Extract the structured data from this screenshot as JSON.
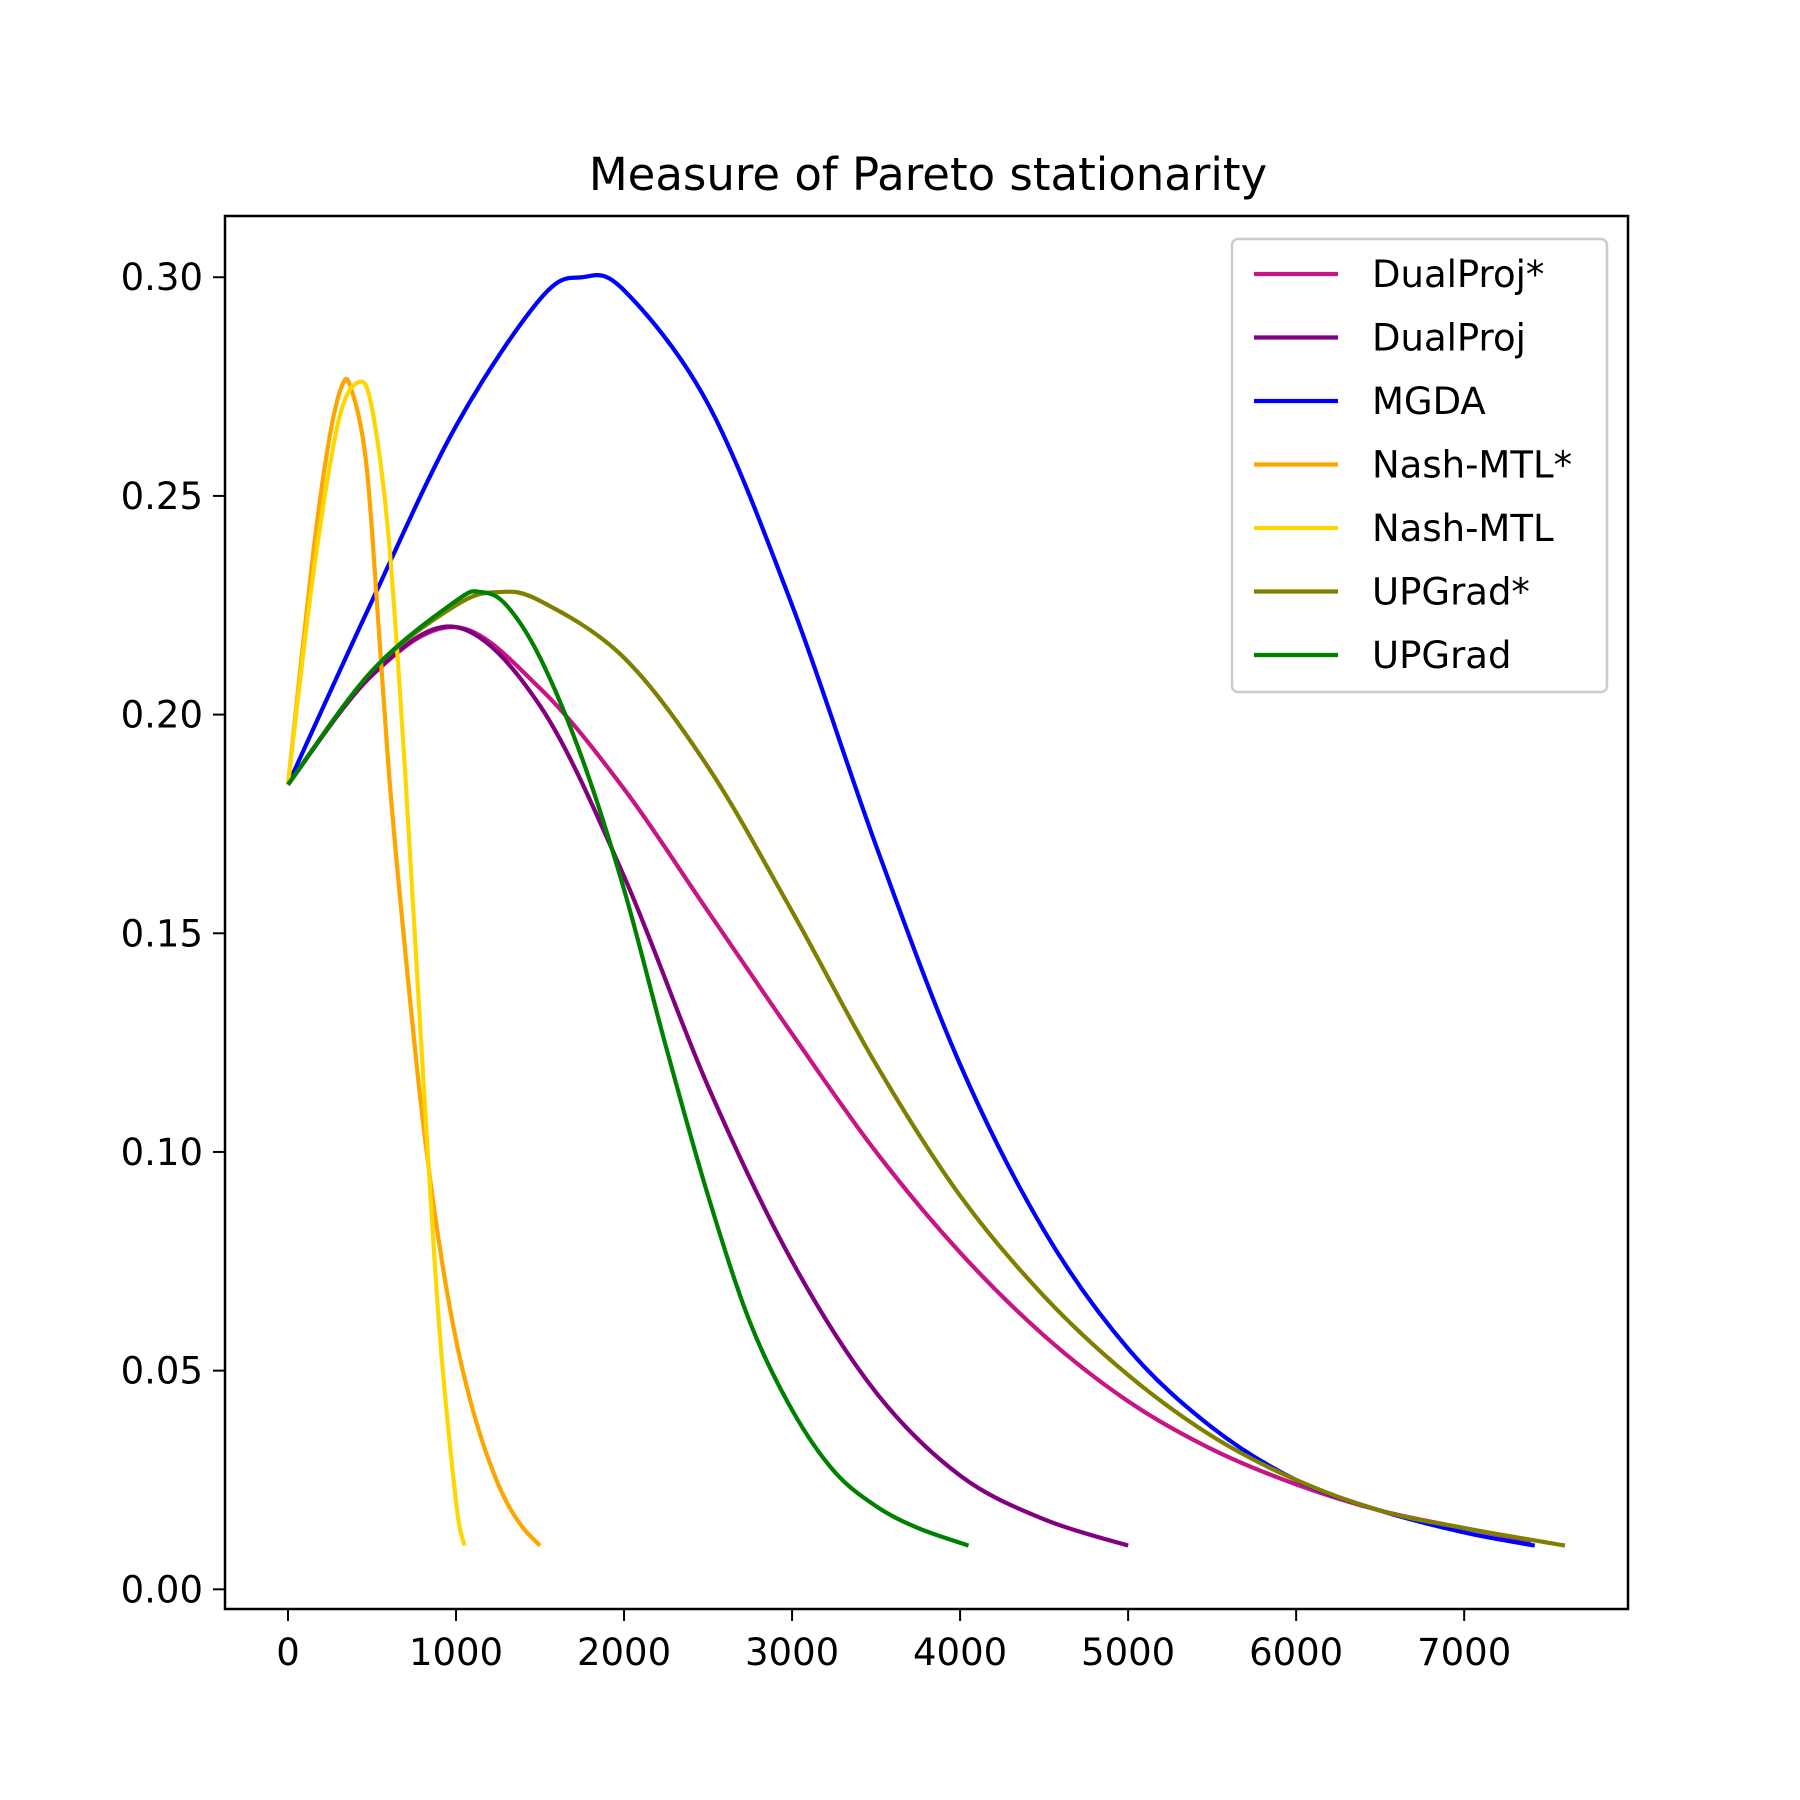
{
  "chart_data": {
    "type": "line",
    "title": "Measure of Pareto stationarity",
    "xlabel": "",
    "ylabel": "",
    "xlim": [
      -375,
      7975
    ],
    "ylim": [
      -0.0045,
      0.314
    ],
    "grid": false,
    "legend_position": "top-right",
    "x_ticks": [
      0,
      1000,
      2000,
      3000,
      4000,
      5000,
      6000,
      7000
    ],
    "x_tick_labels": [
      "0",
      "1000",
      "2000",
      "3000",
      "4000",
      "5000",
      "6000",
      "7000"
    ],
    "y_ticks": [
      0.0,
      0.05,
      0.1,
      0.15,
      0.2,
      0.25,
      0.3
    ],
    "y_tick_labels": [
      "0.00",
      "0.05",
      "0.10",
      "0.15",
      "0.20",
      "0.25",
      "0.30"
    ],
    "series": [
      {
        "name": "DualProj*",
        "color": "#c71585",
        "x": [
          0,
          500,
          1000,
          1500,
          2000,
          2500,
          3000,
          3500,
          4000,
          4500,
          5000,
          5500,
          6000,
          6500,
          7000,
          7400
        ],
        "y": [
          0.184,
          0.209,
          0.22,
          0.206,
          0.183,
          0.155,
          0.127,
          0.1,
          0.077,
          0.058,
          0.043,
          0.032,
          0.024,
          0.018,
          0.014,
          0.011
        ]
      },
      {
        "name": "DualProj",
        "color": "#800080",
        "x": [
          0,
          500,
          1000,
          1500,
          2000,
          2500,
          3000,
          3500,
          4000,
          4500,
          5000
        ],
        "y": [
          0.184,
          0.209,
          0.22,
          0.202,
          0.163,
          0.115,
          0.075,
          0.045,
          0.026,
          0.016,
          0.01
        ]
      },
      {
        "name": "MGDA",
        "color": "#0000ff",
        "x": [
          0,
          500,
          1000,
          1500,
          1750,
          2000,
          2500,
          3000,
          3500,
          4000,
          4500,
          5000,
          5500,
          6000,
          6500,
          7000,
          7420
        ],
        "y": [
          0.184,
          0.226,
          0.266,
          0.295,
          0.3,
          0.297,
          0.271,
          0.225,
          0.17,
          0.12,
          0.082,
          0.055,
          0.037,
          0.025,
          0.018,
          0.013,
          0.01
        ]
      },
      {
        "name": "Nash-MTL*",
        "color": "#ffa500",
        "x": [
          0,
          150,
          250,
          330,
          380,
          450,
          500,
          600,
          700,
          800,
          900,
          1000,
          1100,
          1200,
          1300,
          1400,
          1500
        ],
        "y": [
          0.184,
          0.237,
          0.264,
          0.276,
          0.274,
          0.262,
          0.242,
          0.187,
          0.145,
          0.108,
          0.079,
          0.057,
          0.041,
          0.029,
          0.02,
          0.014,
          0.01
        ]
      },
      {
        "name": "Nash-MTL",
        "color": "#ffd700",
        "x": [
          0,
          150,
          300,
          420,
          500,
          600,
          700,
          800,
          900,
          1000,
          1050
        ],
        "y": [
          0.184,
          0.232,
          0.267,
          0.276,
          0.27,
          0.24,
          0.185,
          0.12,
          0.06,
          0.02,
          0.01
        ]
      },
      {
        "name": "UPGrad*",
        "color": "#808000",
        "x": [
          0,
          500,
          1000,
          1250,
          1500,
          2000,
          2500,
          3000,
          3500,
          4000,
          4500,
          5000,
          5500,
          6000,
          6500,
          7000,
          7600
        ],
        "y": [
          0.184,
          0.21,
          0.225,
          0.228,
          0.226,
          0.213,
          0.188,
          0.155,
          0.12,
          0.09,
          0.067,
          0.049,
          0.035,
          0.025,
          0.018,
          0.014,
          0.01
        ]
      },
      {
        "name": "UPGrad",
        "color": "#008000",
        "x": [
          0,
          500,
          1000,
          1150,
          1300,
          1500,
          1750,
          2000,
          2250,
          2500,
          2750,
          3000,
          3250,
          3500,
          3750,
          4050
        ],
        "y": [
          0.184,
          0.21,
          0.226,
          0.228,
          0.225,
          0.213,
          0.19,
          0.16,
          0.124,
          0.09,
          0.061,
          0.041,
          0.027,
          0.019,
          0.014,
          0.01
        ]
      }
    ]
  }
}
